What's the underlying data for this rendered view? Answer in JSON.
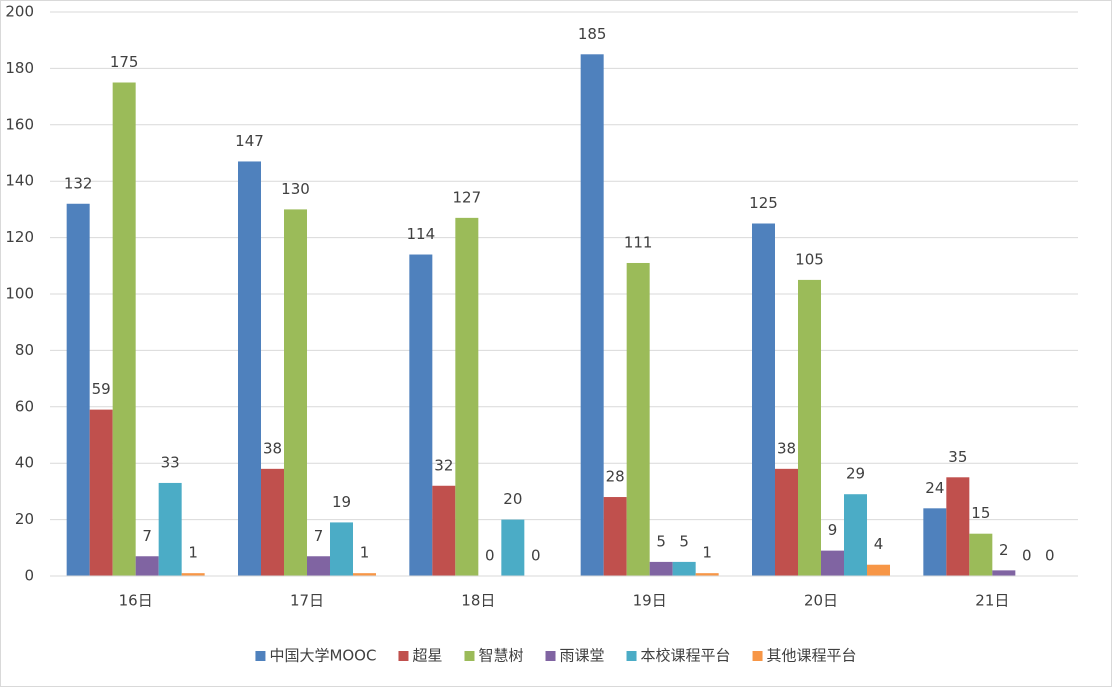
{
  "chart_data": {
    "type": "bar",
    "categories": [
      "16日",
      "17日",
      "18日",
      "19日",
      "20日",
      "21日"
    ],
    "series": [
      {
        "name": "中国大学MOOC",
        "color": "#4f81bd",
        "values": [
          132,
          147,
          114,
          185,
          125,
          24
        ]
      },
      {
        "name": "超星",
        "color": "#c0504d",
        "values": [
          59,
          38,
          32,
          28,
          38,
          35
        ]
      },
      {
        "name": "智慧树",
        "color": "#9bbb59",
        "values": [
          175,
          130,
          127,
          111,
          105,
          15
        ]
      },
      {
        "name": "雨课堂",
        "color": "#8064a2",
        "values": [
          7,
          7,
          0,
          5,
          9,
          2
        ]
      },
      {
        "name": "本校课程平台",
        "color": "#4bacc6",
        "values": [
          33,
          19,
          20,
          5,
          29,
          0
        ]
      },
      {
        "name": "其他课程平台",
        "color": "#f79646",
        "values": [
          1,
          1,
          0,
          1,
          4,
          0
        ]
      }
    ],
    "ylim": [
      0,
      200
    ],
    "yticks": [
      0,
      20,
      40,
      60,
      80,
      100,
      120,
      140,
      160,
      180,
      200
    ],
    "grid": true,
    "legend": "bottom"
  }
}
